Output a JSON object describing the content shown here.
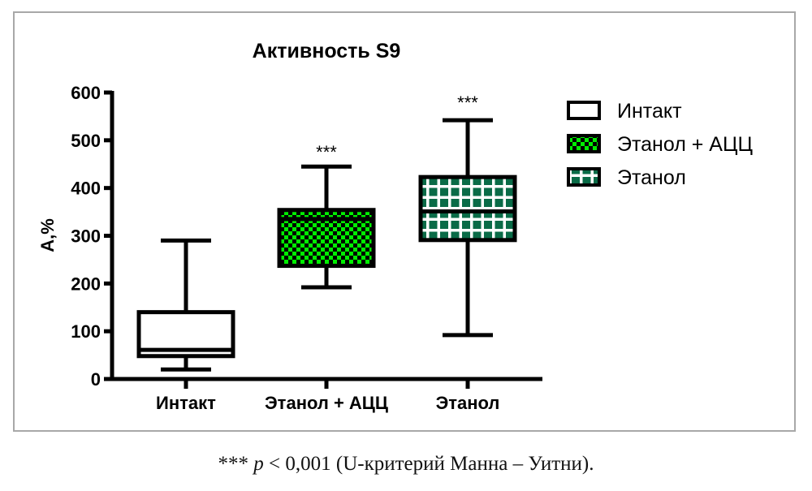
{
  "chart_data": {
    "type": "boxplot",
    "title": "Активность S9",
    "xlabel": "",
    "ylabel": "A,%",
    "ylim": [
      0,
      600
    ],
    "yticks": [
      0,
      100,
      200,
      300,
      400,
      500,
      600
    ],
    "grid": false,
    "legend_position": "right",
    "categories": [
      "Интакт",
      "Этанол + АЦЦ",
      "Этанол"
    ],
    "series": [
      {
        "name": "Интакт",
        "min": 20,
        "q1": 48,
        "median": 61,
        "q3": 140,
        "max": 290,
        "annotation": "",
        "fill": "#ffffff",
        "pattern": "none"
      },
      {
        "name": "Этанол + АЦЦ",
        "min": 192,
        "q1": 237,
        "median": 335,
        "q3": 354,
        "max": 445,
        "annotation": "***",
        "fill": "#00ee00",
        "pattern": "checker"
      },
      {
        "name": "Этанол",
        "min": 92,
        "q1": 291,
        "median": 351,
        "q3": 423,
        "max": 542,
        "annotation": "***",
        "fill": "#0a6b47",
        "pattern": "grid"
      }
    ]
  },
  "caption": {
    "stars": "***",
    "p": "p",
    "text": " < 0,001 (U-критерий Манна – Уитни)."
  }
}
